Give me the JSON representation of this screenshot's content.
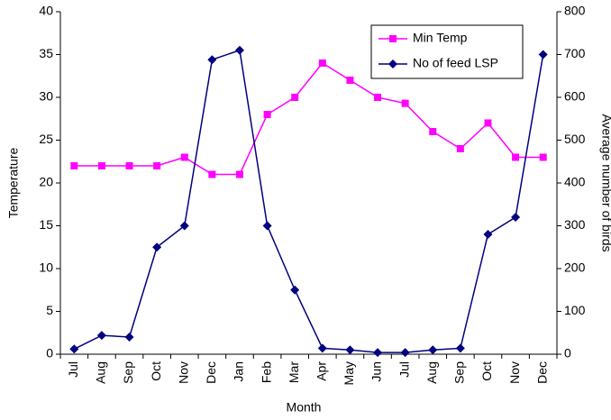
{
  "chart_data": {
    "type": "line",
    "xlabel": "Month",
    "ylabel": "Temperature",
    "y2label": "Average number of birds",
    "categories": [
      "Jul",
      "Aug",
      "Sep",
      "Oct",
      "Nov",
      "Dec",
      "Jan",
      "Feb",
      "Mar",
      "Apr",
      "May",
      "Jun",
      "Jul",
      "Aug",
      "Sep",
      "Oct",
      "Nov",
      "Dec"
    ],
    "series": [
      {
        "name": "Min Temp",
        "color": "#ff00ff",
        "marker": "square",
        "values": [
          22,
          22,
          22,
          22,
          23,
          21,
          21,
          28,
          30,
          34,
          32,
          30,
          29.3,
          26,
          24,
          27,
          23,
          23
        ]
      },
      {
        "name": "No of feed LSP",
        "color": "#000080",
        "marker": "diamond",
        "axis": "y2",
        "values": [
          12,
          44,
          40,
          250,
          300,
          688,
          710,
          300,
          150,
          14,
          10,
          4,
          4,
          10,
          14,
          280,
          320,
          700
        ]
      }
    ],
    "ylim": [
      0,
      40
    ],
    "yticks": [
      0,
      5,
      10,
      15,
      20,
      25,
      30,
      35,
      40
    ],
    "y2lim": [
      0,
      800
    ],
    "y2ticks": [
      0,
      100,
      200,
      300,
      400,
      500,
      600,
      700,
      800
    ],
    "legend": "upper right",
    "grid": false
  }
}
